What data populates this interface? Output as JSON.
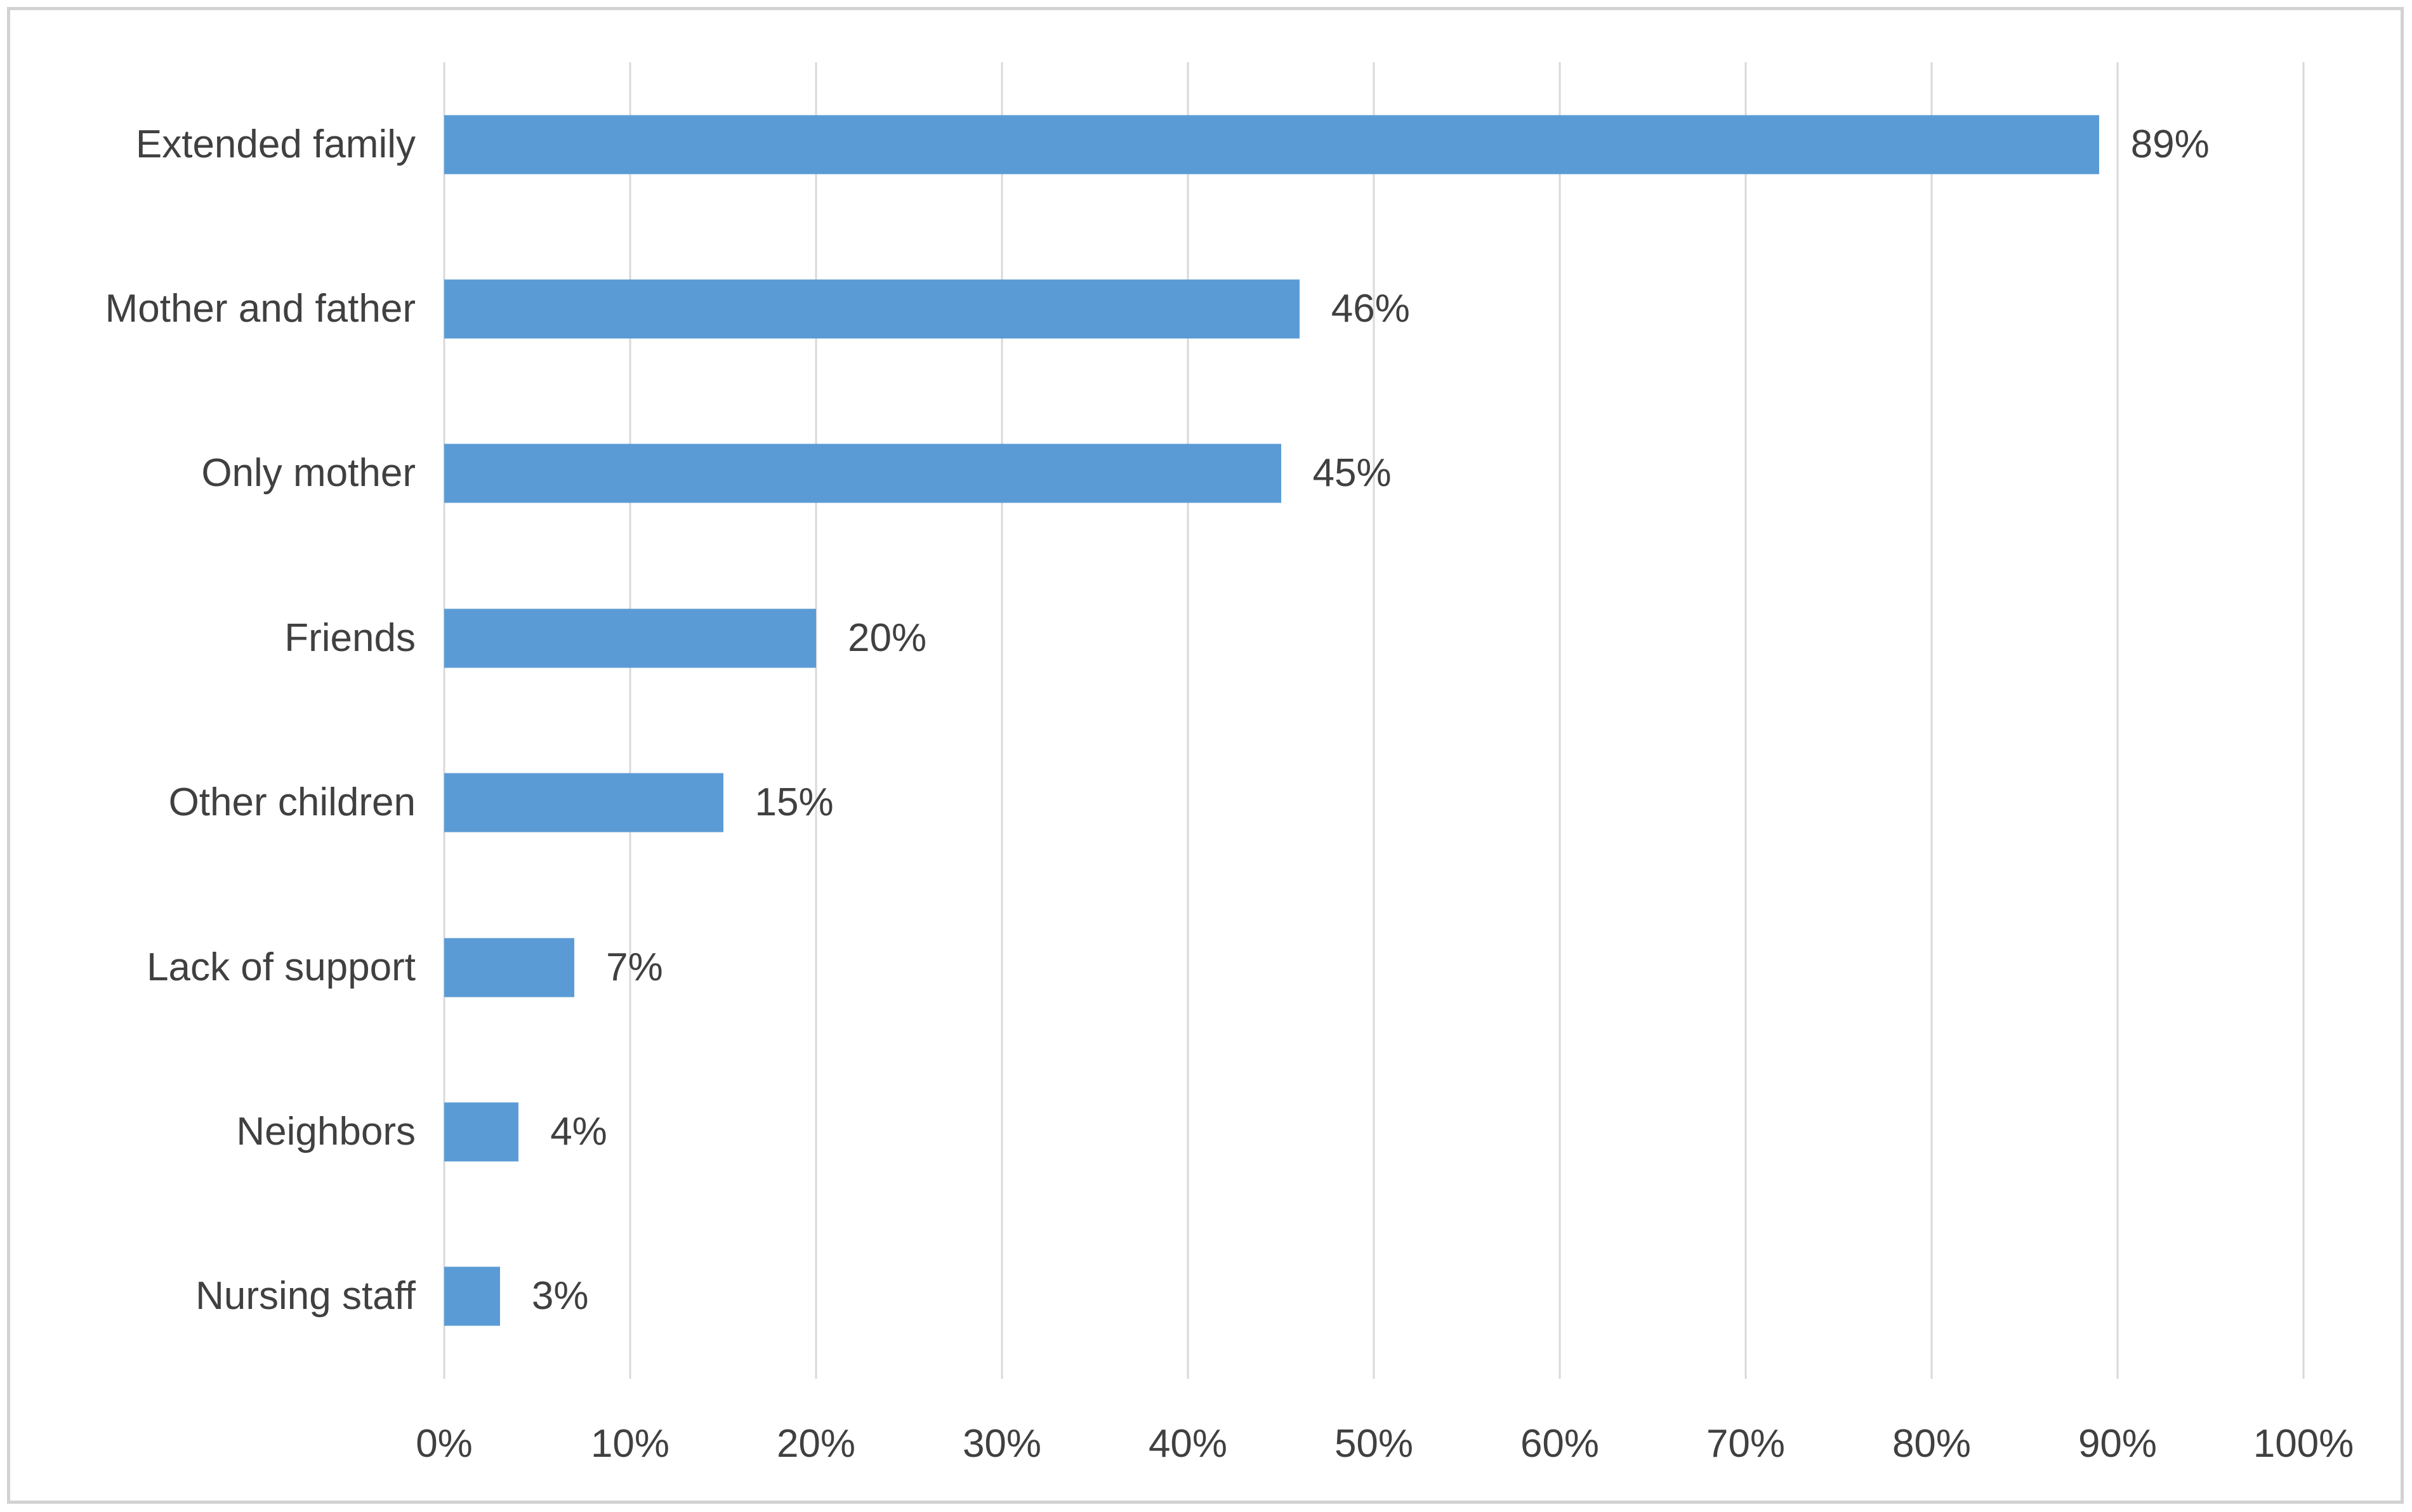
{
  "chart_data": {
    "type": "bar",
    "orientation": "horizontal",
    "categories": [
      "Extended family",
      "Mother and father",
      "Only mother",
      "Friends",
      "Other children",
      "Lack of support",
      "Neighbors",
      "Nursing staff"
    ],
    "values": [
      89,
      46,
      45,
      20,
      15,
      7,
      4,
      3
    ],
    "data_labels": [
      "89%",
      "46%",
      "45%",
      "20%",
      "15%",
      "7%",
      "4%",
      "3%"
    ],
    "xlim": [
      0,
      100
    ],
    "x_ticks": [
      {
        "value": 0,
        "label": "0%"
      },
      {
        "value": 10,
        "label": "10%"
      },
      {
        "value": 20,
        "label": "20%"
      },
      {
        "value": 30,
        "label": "30%"
      },
      {
        "value": 40,
        "label": "40%"
      },
      {
        "value": 50,
        "label": "50%"
      },
      {
        "value": 60,
        "label": "60%"
      },
      {
        "value": 70,
        "label": "70%"
      },
      {
        "value": 80,
        "label": "80%"
      },
      {
        "value": 90,
        "label": "90%"
      },
      {
        "value": 100,
        "label": "100%"
      }
    ],
    "grid": "vertical",
    "legend": "none",
    "bar_color": "#5b9bd5",
    "gridline_color": "#d9d9d9",
    "text_color": "#404040",
    "frame_color": "#d2d2d2"
  }
}
